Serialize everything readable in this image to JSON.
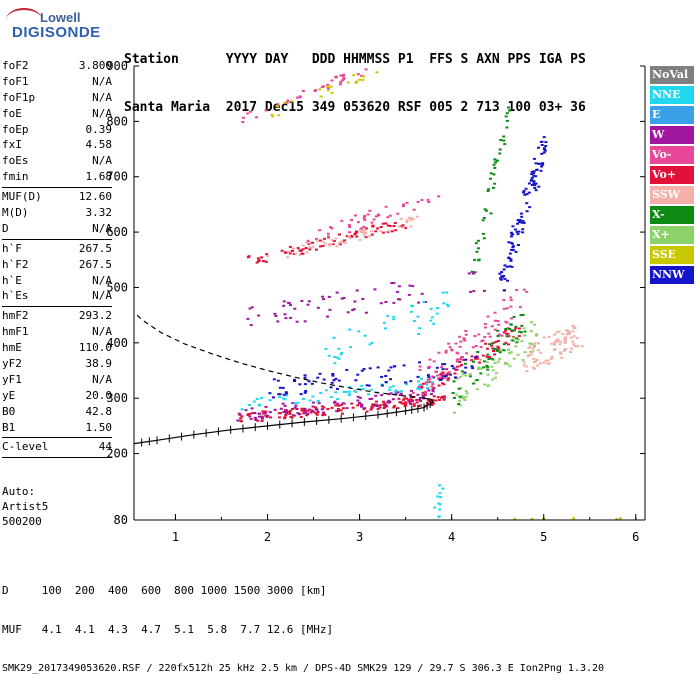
{
  "logo": {
    "line1": "Lowell",
    "line2": "DIGISONDE"
  },
  "header": {
    "line1": "Station      YYYY DAY   DDD HHMMSS P1  FFS S AXN PPS IGA PS",
    "line2": "Santa Maria  2017 Dec15 349 053620 RSF 005 2 713 100 03+ 36"
  },
  "params": [
    {
      "label": "foF2",
      "value": "3.800"
    },
    {
      "label": "foF1",
      "value": "N/A"
    },
    {
      "label": "foF1p",
      "value": "N/A"
    },
    {
      "label": "foE",
      "value": "N/A"
    },
    {
      "label": "foEp",
      "value": "0.39"
    },
    {
      "label": "fxI",
      "value": "4.58"
    },
    {
      "label": "foEs",
      "value": "N/A"
    },
    {
      "label": "fmin",
      "value": "1.68"
    },
    {
      "sep": true
    },
    {
      "label": "MUF(D)",
      "value": "12.60"
    },
    {
      "label": "M(D)",
      "value": "3.32"
    },
    {
      "label": "D",
      "value": "N/A"
    },
    {
      "sep": true
    },
    {
      "label": "h`F",
      "value": "267.5"
    },
    {
      "label": "h`F2",
      "value": "267.5"
    },
    {
      "label": "h`E",
      "value": "N/A"
    },
    {
      "label": "h`Es",
      "value": "N/A"
    },
    {
      "sep": true
    },
    {
      "label": "hmF2",
      "value": "293.2"
    },
    {
      "label": "hmF1",
      "value": "N/A"
    },
    {
      "label": "hmE",
      "value": "110.0"
    },
    {
      "label": "yF2",
      "value": "38.9"
    },
    {
      "label": "yF1",
      "value": "N/A"
    },
    {
      "label": "yE",
      "value": "20.0"
    },
    {
      "label": "B0",
      "value": "42.8"
    },
    {
      "label": "B1",
      "value": "1.50"
    },
    {
      "sep": true
    },
    {
      "label": "C-level",
      "value": "44"
    },
    {
      "sep": true
    }
  ],
  "auto": {
    "line1": "Auto:",
    "line2": "Artist5",
    "line3": "500200"
  },
  "legend": [
    {
      "label": "NoVal",
      "color": "#7f7f7f"
    },
    {
      "label": "NNE",
      "color": "#22d8ee"
    },
    {
      "label": "E",
      "color": "#3aa0e8"
    },
    {
      "label": "W",
      "color": "#a0169e"
    },
    {
      "label": "Vo-",
      "color": "#e8479a"
    },
    {
      "label": "Vo+",
      "color": "#e2113a"
    },
    {
      "label": "SSW",
      "color": "#f4b0a8"
    },
    {
      "label": "X-",
      "color": "#0c8a12"
    },
    {
      "label": "X+",
      "color": "#8cd26a"
    },
    {
      "label": "SSE",
      "color": "#c8c800"
    },
    {
      "label": "NNW",
      "color": "#1414c8"
    }
  ],
  "footer": {
    "line1": "D     100  200  400  600  800 1000 1500 3000 [km]",
    "line2": "MUF   4.1  4.1  4.3  4.7  5.1  5.8  7.7 12.6 [MHz]",
    "line3": "SMK29_2017349053620.RSF / 220fx512h 25 kHz 2.5 km / DPS-4D SMK29 129 / 29.7 S 306.3 E Ion2Png 1.3.20"
  },
  "chart_data": {
    "type": "scatter",
    "xlim": [
      0.55,
      6.1
    ],
    "ylim": [
      80,
      900
    ],
    "xticks": [
      1,
      2,
      3,
      4,
      5,
      6
    ],
    "yticks": [
      200,
      300,
      400,
      500,
      600,
      700,
      800,
      900
    ],
    "ybottom_label": 80,
    "profile": {
      "x": [
        0.55,
        0.8,
        1.2,
        1.6,
        2.0,
        2.4,
        2.8,
        3.2,
        3.5,
        3.7,
        3.8,
        3.78,
        3.7
      ],
      "y": [
        218,
        224,
        234,
        243,
        250,
        257,
        263,
        270,
        277,
        283,
        293,
        298,
        300
      ]
    },
    "profile_ext": {
      "x": [
        3.7,
        3.5,
        3.2,
        2.9,
        2.6,
        2.3,
        2.0,
        1.7,
        1.4,
        1.1,
        0.85,
        0.65,
        0.55
      ],
      "y": [
        300,
        304,
        310,
        318,
        327,
        338,
        350,
        364,
        380,
        398,
        418,
        440,
        455
      ]
    },
    "traces": [
      {
        "x0": 1.7,
        "y0": 265,
        "x1": 3.9,
        "y1": 300,
        "color": "#e2113a",
        "n": 140,
        "spread": 9
      },
      {
        "x0": 3.5,
        "y0": 300,
        "x1": 4.7,
        "y1": 420,
        "color": "#e2113a",
        "n": 70,
        "spread": 14
      },
      {
        "x0": 1.7,
        "y0": 272,
        "x1": 3.9,
        "y1": 310,
        "color": "#a0169e",
        "n": 90,
        "spread": 12
      },
      {
        "x0": 1.7,
        "y0": 290,
        "x1": 3.8,
        "y1": 330,
        "color": "#22d8ee",
        "n": 60,
        "spread": 10
      },
      {
        "x0": 2.0,
        "y0": 320,
        "x1": 4.3,
        "y1": 360,
        "color": "#1414c8",
        "n": 80,
        "spread": 18
      },
      {
        "x0": 3.6,
        "y0": 330,
        "x1": 4.8,
        "y1": 480,
        "color": "#e8479a",
        "n": 80,
        "spread": 30
      },
      {
        "x0": 4.0,
        "y0": 300,
        "x1": 4.9,
        "y1": 420,
        "color": "#8cd26a",
        "n": 70,
        "spread": 30
      },
      {
        "x0": 4.0,
        "y0": 310,
        "x1": 4.8,
        "y1": 450,
        "color": "#0c8a12",
        "n": 50,
        "spread": 30
      },
      {
        "x0": 4.8,
        "y0": 370,
        "x1": 5.4,
        "y1": 420,
        "color": "#f4b0a8",
        "n": 80,
        "spread": 25
      },
      {
        "x0": 4.5,
        "y0": 500,
        "x1": 5.0,
        "y1": 760,
        "color": "#1414c8",
        "n": 100,
        "spread": 20
      },
      {
        "x0": 1.7,
        "y0": 545,
        "x1": 3.5,
        "y1": 620,
        "color": "#e2113a",
        "n": 70,
        "spread": 10
      },
      {
        "x0": 2.0,
        "y0": 555,
        "x1": 3.6,
        "y1": 625,
        "color": "#f4b0a8",
        "n": 50,
        "spread": 10
      },
      {
        "x0": 2.4,
        "y0": 590,
        "x1": 3.9,
        "y1": 670,
        "color": "#e8479a",
        "n": 40,
        "spread": 12
      },
      {
        "x0": 1.7,
        "y0": 808,
        "x1": 3.1,
        "y1": 898,
        "color": "#e8479a",
        "n": 35,
        "spread": 8
      },
      {
        "x0": 2.0,
        "y0": 815,
        "x1": 3.2,
        "y1": 895,
        "color": "#c8c800",
        "n": 20,
        "spread": 8
      },
      {
        "x0": 1.7,
        "y0": 440,
        "x1": 4.5,
        "y1": 520,
        "color": "#a0169e",
        "n": 60,
        "spread": 25
      },
      {
        "x0": 2.6,
        "y0": 380,
        "x1": 4.0,
        "y1": 470,
        "color": "#22d8ee",
        "n": 40,
        "spread": 30
      },
      {
        "x0": 4.2,
        "y0": 520,
        "x1": 4.6,
        "y1": 820,
        "color": "#0c8a12",
        "n": 40,
        "spread": 15
      },
      {
        "x0": 3.8,
        "y0": 80,
        "x1": 3.9,
        "y1": 150,
        "color": "#22d8ee",
        "n": 12,
        "spread": 4
      },
      {
        "x0": 4.6,
        "y0": 82,
        "x1": 5.8,
        "y1": 84,
        "color": "#c8c800",
        "n": 15,
        "spread": 2
      }
    ]
  }
}
